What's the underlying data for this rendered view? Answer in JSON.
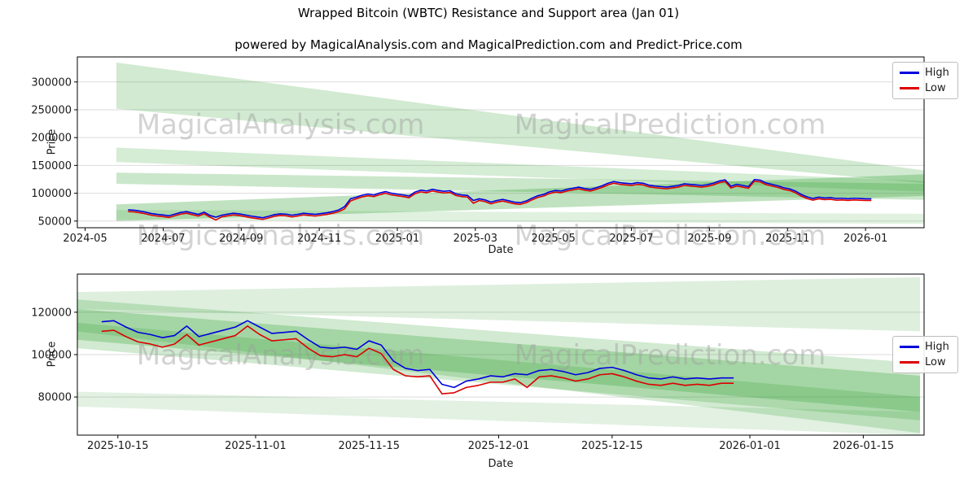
{
  "header": {
    "title": "Wrapped Bitcoin (WBTC) Resistance and Support area (Jan 01)",
    "subtitle": "powered by MagicalAnalysis.com and MagicalPrediction.com and Predict-Price.com"
  },
  "watermark_color": "#9e9e9e",
  "chart_data": [
    {
      "type": "line",
      "title": "Wrapped Bitcoin (WBTC) Resistance and Support area (Jan 01)",
      "xlabel": "Date",
      "ylabel": "Price",
      "grid": "horizontal",
      "x_domain": [
        3.8,
        25.5
      ],
      "y_domain": [
        38000,
        345000
      ],
      "y_ticks": [
        50000,
        100000,
        150000,
        200000,
        250000,
        300000
      ],
      "x_ticks": [
        {
          "v": 4,
          "label": "2024-05"
        },
        {
          "v": 6,
          "label": "2024-07"
        },
        {
          "v": 8,
          "label": "2024-09"
        },
        {
          "v": 10,
          "label": "2024-11"
        },
        {
          "v": 12,
          "label": "2025-01"
        },
        {
          "v": 14,
          "label": "2025-03"
        },
        {
          "v": 16,
          "label": "2025-05"
        },
        {
          "v": 18,
          "label": "2025-07"
        },
        {
          "v": 20,
          "label": "2025-09"
        },
        {
          "v": 22,
          "label": "2025-11"
        },
        {
          "v": 24,
          "label": "2026-01"
        }
      ],
      "legend": {
        "position": "upper right",
        "entries": [
          {
            "label": "High",
            "color": "#0000dd"
          },
          {
            "label": "Low",
            "color": "#dd0000"
          }
        ]
      },
      "band_color": "#2f9e2f",
      "bands": [
        {
          "opacity": 0.22,
          "points": [
            [
              4.8,
              335000
            ],
            [
              25.5,
              141000
            ],
            [
              25.5,
              118000
            ],
            [
              4.8,
              252000
            ]
          ]
        },
        {
          "opacity": 0.2,
          "points": [
            [
              4.8,
              182000
            ],
            [
              25.5,
              122000
            ],
            [
              25.5,
              103000
            ],
            [
              4.8,
              156000
            ]
          ]
        },
        {
          "opacity": 0.25,
          "points": [
            [
              4.8,
              137000
            ],
            [
              25.5,
              117000
            ],
            [
              25.5,
              88000
            ],
            [
              4.8,
              117000
            ]
          ]
        },
        {
          "opacity": 0.3,
          "points": [
            [
              4.8,
              80000
            ],
            [
              25.5,
              134000
            ],
            [
              25.5,
              95000
            ],
            [
              4.8,
              50000
            ]
          ]
        },
        {
          "opacity": 0.15,
          "points": [
            [
              4.8,
              70000
            ],
            [
              25.5,
              63000
            ],
            [
              25.5,
              45000
            ],
            [
              4.8,
              52000
            ]
          ]
        }
      ],
      "watermarks": [
        {
          "text": "MagicalAnalysis.com",
          "fx": 0.24,
          "fy": 0.45
        },
        {
          "text": "MagicalPrediction.com",
          "fx": 0.7,
          "fy": 0.45
        },
        {
          "text": "MagicalAnalysis.com",
          "fx": 0.24,
          "fy": 1.1
        },
        {
          "text": "MagicalPrediction.com",
          "fx": 0.7,
          "fy": 1.1
        }
      ],
      "series": [
        {
          "name": "High",
          "color": "#0000dd",
          "x_start": 5.1,
          "x_step": 0.15,
          "values": [
            70000,
            69500,
            68000,
            66000,
            63500,
            62000,
            61000,
            59500,
            62500,
            65500,
            67000,
            64500,
            62000,
            66000,
            60000,
            57000,
            60500,
            62500,
            64000,
            63000,
            61000,
            59000,
            57500,
            56000,
            58500,
            61500,
            63000,
            62500,
            60500,
            62000,
            64000,
            63000,
            62000,
            63500,
            65000,
            67000,
            70000,
            76000,
            90000,
            93000,
            96500,
            98500,
            97000,
            100500,
            103000,
            100000,
            98500,
            97000,
            95000,
            102000,
            105500,
            104000,
            107000,
            105000,
            103500,
            104500,
            99000,
            97000,
            96000,
            87000,
            90000,
            88000,
            84000,
            87000,
            89000,
            86500,
            84000,
            83000,
            86000,
            91000,
            95500,
            98000,
            102500,
            105000,
            104000,
            107000,
            109000,
            111000,
            108500,
            107000,
            110000,
            113500,
            118000,
            121000,
            119000,
            118000,
            117000,
            119000,
            118000,
            114500,
            113000,
            112000,
            111000,
            112500,
            114000,
            117000,
            116000,
            115000,
            114000,
            115500,
            118000,
            122000,
            124000,
            112500,
            116000,
            114000,
            112000,
            124500,
            123500,
            118500,
            116000,
            113500,
            110000,
            108000,
            104000,
            98000,
            93500,
            90500,
            93000,
            91500,
            92000,
            90500,
            91000,
            90000,
            91000,
            90500,
            90000,
            90000
          ]
        },
        {
          "name": "Low",
          "color": "#dd0000",
          "x_start": 5.1,
          "x_step": 0.15,
          "values": [
            67000,
            66500,
            65000,
            63000,
            60500,
            59000,
            58000,
            56500,
            59500,
            62500,
            64000,
            61500,
            59000,
            63000,
            57000,
            52000,
            57500,
            59500,
            61000,
            60000,
            58000,
            56000,
            54500,
            53000,
            55500,
            58500,
            60000,
            59500,
            57500,
            59000,
            61000,
            60000,
            59000,
            60500,
            62000,
            64000,
            67000,
            72000,
            86000,
            90000,
            93500,
            95500,
            94000,
            97500,
            100000,
            97000,
            95500,
            94000,
            92000,
            99000,
            102500,
            101000,
            104000,
            102000,
            100500,
            101500,
            96000,
            94000,
            93000,
            82000,
            87000,
            85000,
            81000,
            84000,
            86000,
            83500,
            81000,
            80000,
            83000,
            88000,
            92500,
            95000,
            99500,
            102000,
            101000,
            104000,
            106000,
            108000,
            105500,
            104000,
            107000,
            110500,
            115000,
            118000,
            116000,
            115000,
            114000,
            116000,
            115000,
            111500,
            110000,
            109000,
            108000,
            109500,
            111000,
            114000,
            113000,
            112000,
            111000,
            112500,
            115000,
            119000,
            121000,
            109500,
            113000,
            111000,
            109000,
            121500,
            120500,
            115500,
            113000,
            110500,
            107000,
            105000,
            101000,
            95000,
            90500,
            87500,
            90000,
            88500,
            89000,
            87500,
            88000,
            87000,
            88000,
            87500,
            87000,
            87000
          ]
        }
      ]
    },
    {
      "type": "line",
      "title": "",
      "xlabel": "Date",
      "ylabel": "Price",
      "grid": "horizontal",
      "x_domain": [
        0,
        104.5
      ],
      "y_domain": [
        62000,
        138000
      ],
      "y_ticks": [
        80000,
        100000,
        120000
      ],
      "x_ticks": [
        {
          "v": 5,
          "label": "2025-10-15"
        },
        {
          "v": 22,
          "label": "2025-11-01"
        },
        {
          "v": 36,
          "label": "2025-11-15"
        },
        {
          "v": 52,
          "label": "2025-12-01"
        },
        {
          "v": 66,
          "label": "2025-12-15"
        },
        {
          "v": 83,
          "label": "2026-01-01"
        },
        {
          "v": 97,
          "label": "2026-01-15"
        }
      ],
      "legend": {
        "position": "center right",
        "entries": [
          {
            "label": "High",
            "color": "#0000dd"
          },
          {
            "label": "Low",
            "color": "#dd0000"
          }
        ]
      },
      "band_color": "#2f9e2f",
      "bands": [
        {
          "opacity": 0.16,
          "points": [
            [
              0,
              129500
            ],
            [
              104,
              136500
            ],
            [
              104,
              111000
            ],
            [
              0,
              121500
            ]
          ]
        },
        {
          "opacity": 0.22,
          "points": [
            [
              0,
              126000
            ],
            [
              104,
              96000
            ],
            [
              104,
              63000
            ],
            [
              0,
              111000
            ]
          ]
        },
        {
          "opacity": 0.28,
          "points": [
            [
              0,
              121500
            ],
            [
              104,
              90000
            ],
            [
              104,
              73000
            ],
            [
              0,
              107000
            ]
          ]
        },
        {
          "opacity": 0.22,
          "points": [
            [
              0,
              115000
            ],
            [
              104,
              80000
            ],
            [
              104,
              69000
            ],
            [
              0,
              103000
            ]
          ]
        },
        {
          "opacity": 0.14,
          "points": [
            [
              0,
              82500
            ],
            [
              104,
              73000
            ],
            [
              104,
              62000
            ],
            [
              0,
              75500
            ]
          ]
        }
      ],
      "watermarks": [
        {
          "text": "MagicalAnalysis.com",
          "fx": 0.24,
          "fy": 0.56
        },
        {
          "text": "MagicalPrediction.com",
          "fx": 0.7,
          "fy": 0.56
        }
      ],
      "series": [
        {
          "name": "High",
          "color": "#0000dd",
          "x_start": 3,
          "x_step": 1.5,
          "values": [
            115500,
            116000,
            113000,
            110500,
            109500,
            108000,
            109000,
            113500,
            108500,
            110000,
            111500,
            113000,
            116000,
            113000,
            110000,
            110500,
            111000,
            107000,
            103500,
            103000,
            103500,
            102500,
            106500,
            104500,
            97000,
            93500,
            92500,
            93000,
            86000,
            84500,
            87500,
            88500,
            90000,
            89500,
            91000,
            90500,
            92500,
            93000,
            92000,
            90500,
            91500,
            93500,
            94000,
            92500,
            90500,
            89000,
            88500,
            89500,
            88500,
            89000,
            88500,
            89000,
            89000
          ]
        },
        {
          "name": "Low",
          "color": "#dd0000",
          "x_start": 3,
          "x_step": 1.5,
          "values": [
            111000,
            111500,
            108500,
            106000,
            105000,
            103500,
            105000,
            109500,
            104500,
            106000,
            107500,
            109000,
            113500,
            109500,
            106500,
            107000,
            107500,
            103000,
            99500,
            99000,
            100000,
            99000,
            103000,
            100500,
            93000,
            90000,
            89500,
            90000,
            81500,
            82000,
            84500,
            85500,
            87000,
            87000,
            88500,
            84500,
            89500,
            90000,
            89000,
            87500,
            88500,
            90500,
            91000,
            89500,
            87500,
            86000,
            85500,
            86500,
            85500,
            86000,
            85500,
            86500,
            86500
          ]
        }
      ]
    }
  ]
}
